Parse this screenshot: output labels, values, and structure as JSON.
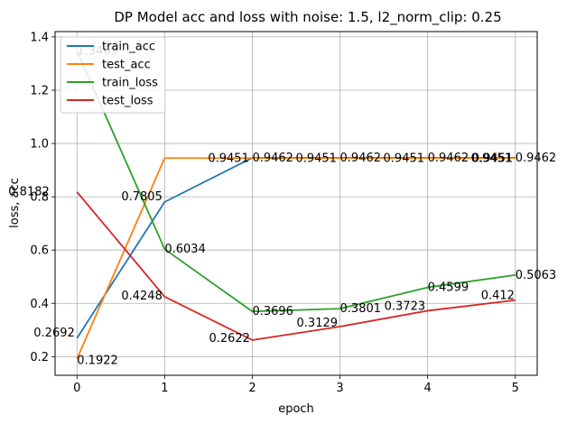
{
  "chart_data": {
    "type": "line",
    "title": "DP Model acc and loss with noise: 1.5, l2_norm_clip: 0.25",
    "xlabel": "epoch",
    "ylabel": "loss, acc",
    "x": [
      0,
      1,
      2,
      3,
      4,
      5
    ],
    "xlim": [
      -0.25,
      5.25
    ],
    "ylim": [
      0.13,
      1.42
    ],
    "xticks": [
      "0",
      "1",
      "2",
      "3",
      "4",
      "5"
    ],
    "yticks": [
      "0.2",
      "0.4",
      "0.6",
      "0.8",
      "1.0",
      "1.2",
      "1.4"
    ],
    "grid": true,
    "legend_position": "top-left",
    "series": [
      {
        "name": "train_acc",
        "color": "#1f77b4",
        "values": [
          0.2692,
          0.7805,
          0.9462,
          0.9462,
          0.9462,
          0.9462
        ],
        "labels": [
          "0.2692",
          "0.7805",
          "0.9462",
          "0.9462",
          "0.9462",
          "0.9462"
        ]
      },
      {
        "name": "test_acc",
        "color": "#ff7f0e",
        "values": [
          0.1922,
          0.9451,
          0.9451,
          0.9451,
          0.9451,
          0.9451
        ],
        "labels": [
          "0.1922",
          "0.9451",
          "0.9451",
          "0.9451",
          "0.9451",
          "0.9451"
        ]
      },
      {
        "name": "train_loss",
        "color": "#2ca02c",
        "values": [
          1.3469,
          0.6034,
          0.3696,
          0.3801,
          0.4599,
          0.5063
        ],
        "labels": [
          "1.3469",
          "0.6034",
          "0.3696",
          "0.3801",
          "0.4599",
          "0.5063"
        ]
      },
      {
        "name": "test_loss",
        "color": "#d62728",
        "values": [
          0.8182,
          0.4248,
          0.2622,
          0.3129,
          0.3723,
          0.412
        ],
        "labels": [
          "0.8182",
          "0.4248",
          "0.2622",
          "0.3129",
          "0.3723",
          "0.412"
        ]
      }
    ]
  }
}
